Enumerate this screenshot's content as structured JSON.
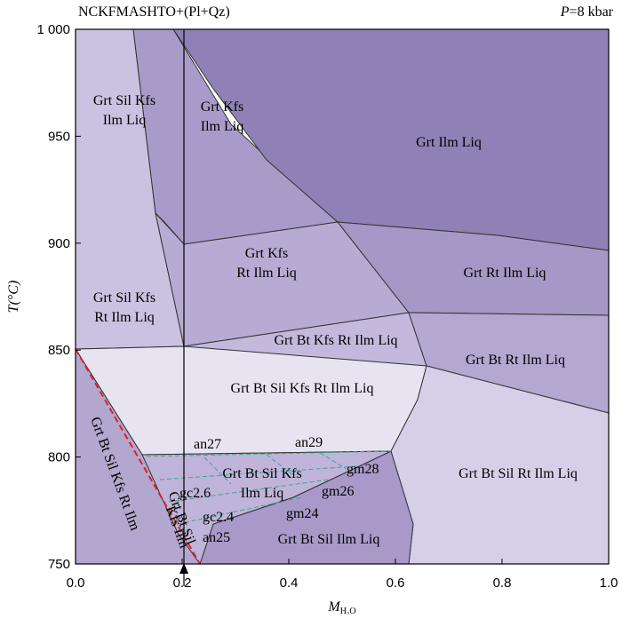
{
  "title": "NCKFMASHTO+(Pl+Qz)",
  "pressure": {
    "symbol": "P",
    "text": "=8 kbar"
  },
  "axes": {
    "x": {
      "symbol": "M",
      "subscript": "H₂O",
      "lim": [
        0,
        1
      ],
      "ticks": [
        {
          "value": 0,
          "label": "0.0"
        },
        0.2,
        0.4,
        0.6,
        0.8,
        {
          "value": 1,
          "label": "1.0"
        }
      ]
    },
    "y": {
      "label": "T(°C)",
      "lim": [
        750,
        1000
      ],
      "ticks": [
        750,
        800,
        850,
        900,
        950,
        {
          "value": 1000,
          "label": "1 000"
        }
      ]
    }
  },
  "fields": [
    [
      "Grt Sil Kfs",
      "Ilm Liq"
    ],
    [
      "Grt Kfs",
      "Ilm Liq"
    ],
    [
      "Grt Ilm Liq"
    ],
    [
      "Grt Kfs",
      "Rt Ilm Liq"
    ],
    [
      "Grt Rt Ilm Liq"
    ],
    [
      "Grt Sil Kfs",
      "Rt Ilm Liq"
    ],
    [
      "Grt Bt Kfs Rt Ilm Liq"
    ],
    [
      "Grt Bt Rt Ilm Liq"
    ],
    [
      "Grt Bt Sil Kfs Rt Ilm Liq"
    ],
    [
      "Grt Bt Sil Kfs",
      "Ilm Liq"
    ],
    [
      "Grt Bt Sil Rt Ilm Liq"
    ],
    [
      "Grt Bt Sil Ilm Liq"
    ],
    [
      "Grt Bt Sil Kfs Rt Ilm"
    ],
    [
      "Kfs Ilm"
    ],
    [
      "Grt Bt Sil"
    ]
  ],
  "isopleths": [
    "an27",
    "an29",
    "gm28",
    "gm26",
    "gm24",
    "gc2.6",
    "gc2.4",
    "an25"
  ]
}
